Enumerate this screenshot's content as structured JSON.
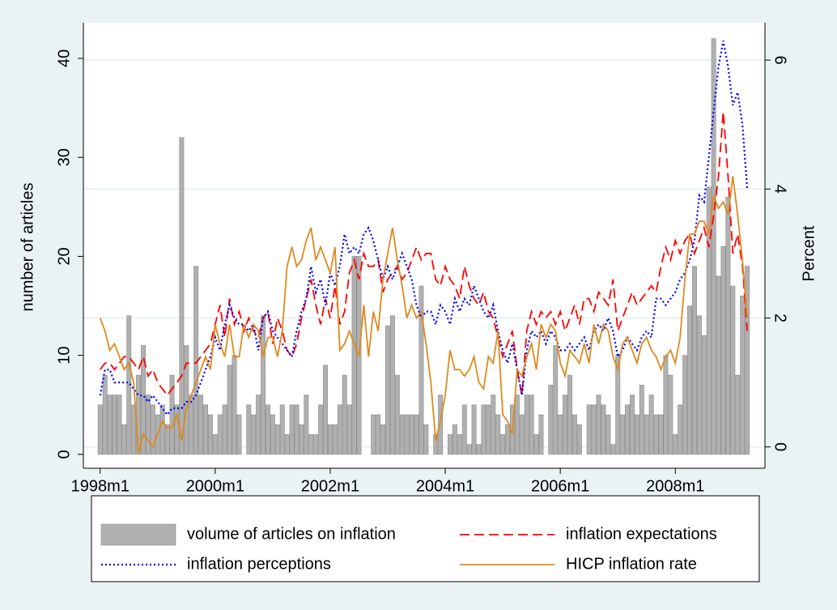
{
  "chart_data": {
    "type": "bar-line",
    "ylabel": "number of articles",
    "y2label": "Percent",
    "x": [
      456,
      457,
      458,
      459,
      460,
      461,
      462,
      463,
      464,
      465,
      466,
      467,
      468,
      469,
      470,
      471,
      472,
      473,
      474,
      475,
      476,
      477,
      478,
      479,
      480,
      481,
      482,
      483,
      484,
      485,
      486,
      487,
      488,
      489,
      490,
      491,
      492,
      493,
      494,
      495,
      496,
      497,
      498,
      499,
      500,
      501,
      502,
      503,
      504,
      505,
      506,
      507,
      508,
      509,
      510,
      511,
      512,
      513,
      514,
      515,
      516,
      517,
      518,
      519,
      520,
      521,
      522,
      523,
      524,
      525,
      526,
      527,
      528,
      529,
      530,
      531,
      532,
      533,
      534,
      535,
      536,
      537,
      538,
      539,
      540,
      541,
      542,
      543,
      544,
      545,
      546,
      547,
      548,
      549,
      550,
      551,
      552,
      553,
      554,
      555,
      556,
      557,
      558,
      559,
      560,
      561,
      562,
      563,
      564,
      565,
      566,
      567,
      568,
      569,
      570,
      571,
      572,
      573,
      574,
      575,
      576,
      577,
      578,
      579,
      580,
      581,
      582,
      583,
      584,
      585,
      586,
      587,
      588,
      589,
      590,
      591
    ],
    "xlim": [
      452.5,
      594.7
    ],
    "xticks": [
      {
        "value": 456,
        "label": "1998m1"
      },
      {
        "value": 480,
        "label": "2000m1"
      },
      {
        "value": 504,
        "label": "2002m1"
      },
      {
        "value": 528,
        "label": "2004m1"
      },
      {
        "value": 552,
        "label": "2006m1"
      },
      {
        "value": 576,
        "label": "2008m1"
      }
    ],
    "ylim": [
      -1.4,
      43.6
    ],
    "yticks": [
      0,
      10,
      20,
      30,
      40
    ],
    "y2lim": [
      -0.33,
      6.58
    ],
    "y2ticks": [
      0,
      2,
      4,
      6
    ],
    "grid": true,
    "legend": "bottom",
    "series": [
      {
        "name": "volume of articles on inflation",
        "type": "bar",
        "color": "#b0b0b0",
        "values": [
          5,
          8,
          6,
          6,
          6,
          3,
          14,
          5,
          8,
          11,
          6,
          5,
          4,
          5,
          3,
          8,
          5,
          32,
          11,
          6,
          19,
          6,
          5,
          4,
          2,
          4,
          5,
          9,
          10,
          4,
          0,
          5,
          4,
          6,
          14,
          5,
          4,
          3,
          5,
          2,
          5,
          5,
          3,
          6,
          2,
          2,
          5,
          9,
          3,
          3,
          5,
          8,
          5,
          20,
          20,
          0,
          0,
          4,
          4,
          3,
          13,
          14,
          8,
          4,
          4,
          4,
          4,
          17,
          3,
          0,
          2,
          6,
          0,
          2,
          3,
          2,
          5,
          1,
          5,
          1,
          5,
          5,
          6,
          4,
          2,
          3,
          5,
          6,
          4,
          6,
          6,
          2,
          4,
          0,
          7,
          11,
          4,
          6,
          8,
          4,
          3,
          0,
          5,
          5,
          6,
          5,
          4,
          1,
          10,
          4,
          5,
          6,
          4,
          7,
          4,
          6,
          4,
          4,
          10,
          8,
          2,
          5,
          10,
          15,
          19,
          14,
          12,
          27,
          42,
          18,
          21,
          26,
          17,
          8,
          16,
          19
        ]
      },
      {
        "name": "inflation expectations",
        "type": "line",
        "style": "dash",
        "axis": "y2",
        "color": "#ff0000",
        "values": [
          1.2,
          1.3,
          1.3,
          1.2,
          1.3,
          1.4,
          1.4,
          1.3,
          1.2,
          1.4,
          1.1,
          1.2,
          1.0,
          0.9,
          0.8,
          0.9,
          1.0,
          1.1,
          1.3,
          1.3,
          1.3,
          1.4,
          1.5,
          1.6,
          1.9,
          2.2,
          1.7,
          2.3,
          1.9,
          2.1,
          1.8,
          2.0,
          1.8,
          1.7,
          2.0,
          2.1,
          1.6,
          2.0,
          1.8,
          1.5,
          1.4,
          1.6,
          2.0,
          2.3,
          2.6,
          2.2,
          1.9,
          2.3,
          2.0,
          2.5,
          1.9,
          2.1,
          2.7,
          2.9,
          2.6,
          3.0,
          2.8,
          2.8,
          2.9,
          2.4,
          2.6,
          2.7,
          2.8,
          2.6,
          2.7,
          2.9,
          3.1,
          2.9,
          3.0,
          3.0,
          2.6,
          2.5,
          2.8,
          2.6,
          2.5,
          2.3,
          2.8,
          2.5,
          2.3,
          2.2,
          2.4,
          2.1,
          2.0,
          1.7,
          1.4,
          1.6,
          1.8,
          1.2,
          0.8,
          1.8,
          2.1,
          1.9,
          2.1,
          2.0,
          2.1,
          1.9,
          2.1,
          1.8,
          2.0,
          2.2,
          1.9,
          2.3,
          2.3,
          2.1,
          2.4,
          2.3,
          2.2,
          2.6,
          1.8,
          2.0,
          2.2,
          2.4,
          2.2,
          2.3,
          2.4,
          2.5,
          2.4,
          2.8,
          3.1,
          2.9,
          3.2,
          3.0,
          3.2,
          3.3,
          3.0,
          3.2,
          3.4,
          3.1,
          3.6,
          4.2,
          5.2,
          4.2,
          3.0,
          3.3,
          2.8,
          1.8
        ]
      },
      {
        "name": "inflation perceptions",
        "type": "line",
        "style": "dot",
        "axis": "y2",
        "color": "#0000ff",
        "values": [
          0.8,
          1.2,
          1.2,
          1.0,
          1.0,
          1.0,
          1.0,
          0.9,
          0.8,
          0.8,
          0.7,
          0.8,
          0.7,
          0.6,
          0.5,
          0.6,
          0.6,
          0.6,
          0.7,
          0.7,
          0.8,
          1.0,
          1.2,
          1.4,
          1.7,
          1.5,
          1.9,
          2.2,
          2.0,
          1.9,
          1.9,
          1.8,
          1.9,
          1.5,
          2.0,
          2.1,
          1.8,
          1.7,
          1.6,
          1.5,
          1.4,
          1.8,
          2.1,
          2.3,
          2.8,
          2.4,
          2.6,
          2.2,
          2.7,
          2.5,
          2.8,
          3.3,
          3.0,
          3.1,
          3.0,
          3.3,
          3.4,
          3.2,
          2.9,
          2.6,
          2.8,
          2.6,
          2.8,
          3.0,
          2.8,
          2.6,
          2.2,
          2.0,
          2.1,
          2.1,
          1.9,
          2.2,
          2.1,
          1.9,
          2.3,
          2.1,
          2.3,
          2.2,
          2.5,
          2.3,
          2.1,
          2.0,
          2.2,
          1.8,
          1.5,
          1.3,
          1.6,
          1.2,
          0.8,
          1.5,
          1.8,
          1.7,
          1.8,
          1.6,
          1.8,
          1.7,
          1.5,
          1.5,
          1.6,
          1.5,
          1.6,
          1.7,
          1.5,
          1.8,
          1.9,
          1.8,
          2.0,
          1.8,
          1.4,
          1.5,
          1.7,
          1.6,
          1.5,
          1.7,
          1.8,
          1.7,
          2.3,
          2.3,
          2.2,
          2.3,
          2.4,
          2.6,
          2.7,
          2.9,
          3.2,
          3.9,
          3.8,
          4.5,
          5.2,
          5.9,
          6.3,
          5.9,
          5.3,
          5.5,
          5.0,
          4.0
        ]
      },
      {
        "name": "HICP inflation rate",
        "type": "line",
        "style": "solid",
        "axis": "y2",
        "color": "#dc8a1e",
        "values": [
          2.0,
          1.8,
          1.5,
          1.6,
          1.4,
          1.2,
          1.3,
          1.0,
          -0.1,
          0.2,
          0.1,
          0.0,
          0.2,
          0.4,
          0.3,
          0.3,
          0.5,
          0.1,
          0.6,
          0.8,
          1.0,
          1.2,
          1.4,
          1.2,
          1.9,
          1.6,
          1.4,
          1.9,
          1.4,
          1.4,
          1.9,
          1.7,
          1.9,
          1.8,
          1.4,
          1.7,
          1.7,
          1.4,
          1.8,
          2.8,
          3.1,
          2.8,
          2.9,
          3.2,
          3.4,
          2.9,
          3.1,
          2.9,
          2.7,
          3.1,
          1.5,
          1.6,
          1.8,
          1.6,
          1.4,
          2.2,
          1.4,
          2.1,
          1.8,
          2.6,
          3.0,
          3.4,
          2.9,
          2.5,
          2.0,
          2.2,
          2.0,
          2.1,
          1.6,
          1.0,
          0.1,
          0.4,
          0.8,
          1.5,
          1.2,
          1.2,
          1.1,
          1.2,
          1.4,
          1.0,
          0.9,
          1.4,
          1.3,
          1.8,
          0.5,
          0.4,
          0.2,
          1.2,
          1.1,
          1.4,
          1.6,
          1.2,
          1.9,
          1.7,
          1.9,
          1.8,
          1.3,
          1.1,
          1.5,
          1.4,
          1.3,
          1.6,
          1.3,
          1.9,
          1.6,
          1.9,
          1.8,
          1.4,
          1.2,
          1.6,
          1.7,
          1.5,
          1.3,
          1.6,
          1.7,
          1.5,
          1.4,
          1.2,
          1.4,
          1.5,
          1.3,
          1.7,
          2.6,
          3.3,
          3.3,
          3.5,
          3.5,
          3.3,
          3.9,
          3.7,
          3.8,
          3.6,
          4.2,
          3.6,
          2.9,
          2.0
        ]
      }
    ]
  }
}
